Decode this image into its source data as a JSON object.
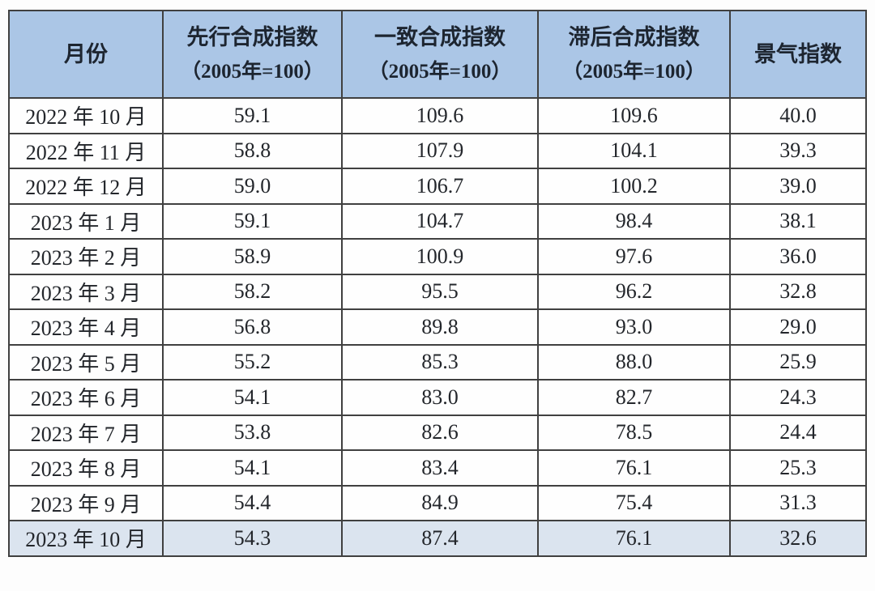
{
  "colors": {
    "header_bg": "#abc6e6",
    "highlight_row_bg": "#dbe4ef",
    "border": "#404040",
    "text": "#23262b",
    "page_bg": "#fdfdfd"
  },
  "table": {
    "columns": [
      {
        "label": "月份",
        "sublabel": ""
      },
      {
        "label": "先行合成指数",
        "sublabel": "（2005年=100）"
      },
      {
        "label": "一致合成指数",
        "sublabel": "（2005年=100）"
      },
      {
        "label": "滞后合成指数",
        "sublabel": "（2005年=100）"
      },
      {
        "label": "景气指数",
        "sublabel": ""
      }
    ],
    "rows": [
      {
        "month": "2022 年 10 月",
        "values": [
          "59.1",
          "109.6",
          "109.6",
          "40.0"
        ],
        "highlight": false
      },
      {
        "month": "2022 年 11 月",
        "values": [
          "58.8",
          "107.9",
          "104.1",
          "39.3"
        ],
        "highlight": false
      },
      {
        "month": "2022 年 12 月",
        "values": [
          "59.0",
          "106.7",
          "100.2",
          "39.0"
        ],
        "highlight": false
      },
      {
        "month": "2023 年 1 月",
        "values": [
          "59.1",
          "104.7",
          "98.4",
          "38.1"
        ],
        "highlight": false
      },
      {
        "month": "2023 年 2 月",
        "values": [
          "58.9",
          "100.9",
          "97.6",
          "36.0"
        ],
        "highlight": false
      },
      {
        "month": "2023 年 3 月",
        "values": [
          "58.2",
          "95.5",
          "96.2",
          "32.8"
        ],
        "highlight": false
      },
      {
        "month": "2023 年 4 月",
        "values": [
          "56.8",
          "89.8",
          "93.0",
          "29.0"
        ],
        "highlight": false
      },
      {
        "month": "2023 年 5 月",
        "values": [
          "55.2",
          "85.3",
          "88.0",
          "25.9"
        ],
        "highlight": false
      },
      {
        "month": "2023 年 6 月",
        "values": [
          "54.1",
          "83.0",
          "82.7",
          "24.3"
        ],
        "highlight": false
      },
      {
        "month": "2023 年 7 月",
        "values": [
          "53.8",
          "82.6",
          "78.5",
          "24.4"
        ],
        "highlight": false
      },
      {
        "month": "2023 年 8 月",
        "values": [
          "54.1",
          "83.4",
          "76.1",
          "25.3"
        ],
        "highlight": false
      },
      {
        "month": "2023 年 9 月",
        "values": [
          "54.4",
          "84.9",
          "75.4",
          "31.3"
        ],
        "highlight": false
      },
      {
        "month": "2023 年 10 月",
        "values": [
          "54.3",
          "87.4",
          "76.1",
          "32.6"
        ],
        "highlight": true
      }
    ]
  },
  "chart_data": {
    "type": "table",
    "title": "",
    "columns": [
      "月份",
      "先行合成指数（2005年=100）",
      "一致合成指数（2005年=100）",
      "滞后合成指数（2005年=100）",
      "景气指数"
    ],
    "rows": [
      [
        "2022年10月",
        59.1,
        109.6,
        109.6,
        40.0
      ],
      [
        "2022年11月",
        58.8,
        107.9,
        104.1,
        39.3
      ],
      [
        "2022年12月",
        59.0,
        106.7,
        100.2,
        39.0
      ],
      [
        "2023年1月",
        59.1,
        104.7,
        98.4,
        38.1
      ],
      [
        "2023年2月",
        58.9,
        100.9,
        97.6,
        36.0
      ],
      [
        "2023年3月",
        58.2,
        95.5,
        96.2,
        32.8
      ],
      [
        "2023年4月",
        56.8,
        89.8,
        93.0,
        29.0
      ],
      [
        "2023年5月",
        55.2,
        85.3,
        88.0,
        25.9
      ],
      [
        "2023年6月",
        54.1,
        83.0,
        82.7,
        24.3
      ],
      [
        "2023年7月",
        53.8,
        82.6,
        78.5,
        24.4
      ],
      [
        "2023年8月",
        54.1,
        83.4,
        76.1,
        25.3
      ],
      [
        "2023年9月",
        54.4,
        84.9,
        75.4,
        31.3
      ],
      [
        "2023年10月",
        54.3,
        87.4,
        76.1,
        32.6
      ]
    ]
  }
}
